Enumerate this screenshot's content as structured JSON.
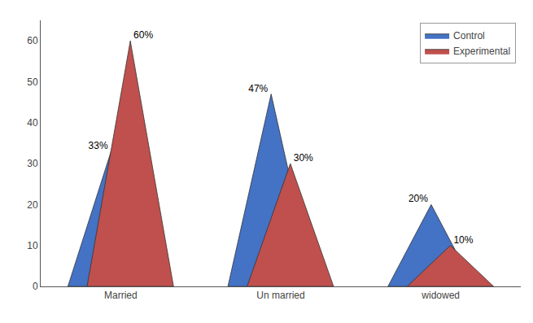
{
  "chart_data": {
    "type": "triangle",
    "categories": [
      "Married",
      "Un married",
      "widowed"
    ],
    "series": [
      {
        "name": "Control",
        "color": "#4472C4",
        "values": [
          33,
          47,
          20
        ],
        "value_labels": [
          "33%",
          "47%",
          "20%"
        ]
      },
      {
        "name": "Experimental",
        "color": "#C0504D",
        "values": [
          60,
          30,
          10
        ],
        "value_labels": [
          "60%",
          "30%",
          "10%"
        ]
      }
    ],
    "ylim": [
      0,
      65
    ],
    "yticks": [
      0,
      10,
      20,
      30,
      40,
      50,
      60
    ],
    "grid": false,
    "legend": "upper right",
    "data_labels": true
  }
}
